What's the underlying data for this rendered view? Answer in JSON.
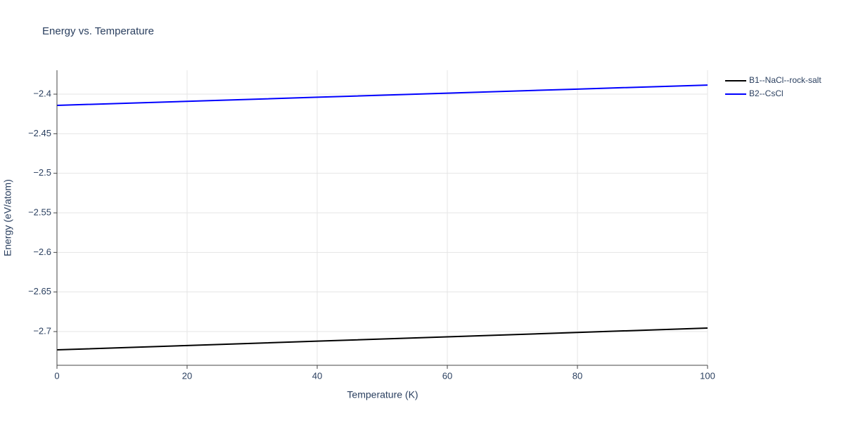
{
  "chart_data": {
    "type": "line",
    "title": "Energy vs. Temperature",
    "x_label": "Temperature (K)",
    "y_label": "Energy (eV/atom)",
    "x": [
      0,
      20,
      40,
      60,
      80,
      100
    ],
    "series": [
      {
        "name": "B1--NaCl--rock-salt",
        "color": "#000000",
        "values": [
          -2.7231,
          -2.7176,
          -2.7121,
          -2.7066,
          -2.7011,
          -2.6956
        ]
      },
      {
        "name": "B2--CsCl",
        "color": "#0000ff",
        "values": [
          -2.4142,
          -2.4091,
          -2.4039,
          -2.3988,
          -2.3936,
          -2.3885
        ]
      }
    ],
    "xlim": [
      0,
      100
    ],
    "xticks": [
      0,
      20,
      40,
      60,
      80,
      100
    ],
    "ylim": [
      -2.7426,
      -2.3698
    ],
    "yticks": [
      {
        "value": -2.4,
        "label": "−2.4"
      },
      {
        "value": -2.45,
        "label": "−2.45"
      },
      {
        "value": -2.5,
        "label": "−2.5"
      },
      {
        "value": -2.55,
        "label": "−2.55"
      },
      {
        "value": -2.6,
        "label": "−2.6"
      },
      {
        "value": -2.65,
        "label": "−2.65"
      },
      {
        "value": -2.7,
        "label": "−2.7"
      }
    ],
    "grid": true,
    "legend": "top-right"
  }
}
